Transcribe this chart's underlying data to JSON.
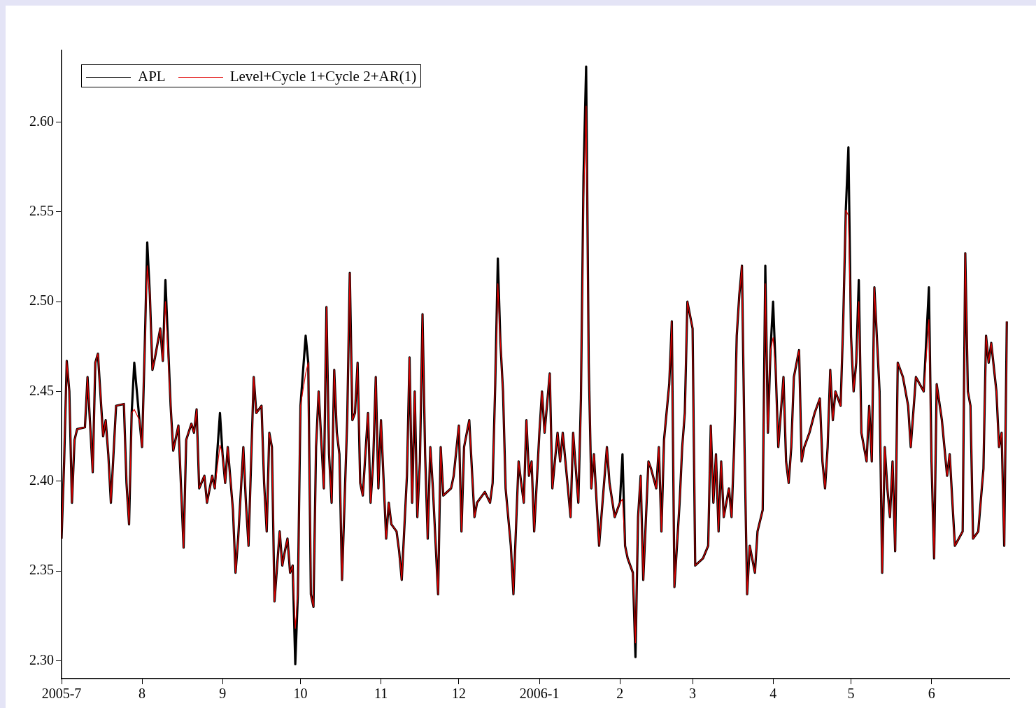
{
  "chart_data": {
    "type": "line",
    "x": [
      "2005-07-01",
      "2005-07-02",
      "2005-07-03",
      "2005-07-04",
      "2005-07-05",
      "2005-07-06",
      "2005-07-07",
      "2005-07-10",
      "2005-07-11",
      "2005-07-13",
      "2005-07-14",
      "2005-07-15",
      "2005-07-17",
      "2005-07-18",
      "2005-07-19",
      "2005-07-20",
      "2005-07-22",
      "2005-07-25",
      "2005-07-26",
      "2005-07-27",
      "2005-07-28",
      "2005-07-29",
      "2005-07-31",
      "2005-08-01",
      "2005-08-02",
      "2005-08-03",
      "2005-08-04",
      "2005-08-05",
      "2005-08-06",
      "2005-08-08",
      "2005-08-09",
      "2005-08-10",
      "2005-08-12",
      "2005-08-13",
      "2005-08-15",
      "2005-08-17",
      "2005-08-18",
      "2005-08-20",
      "2005-08-21",
      "2005-08-22",
      "2005-08-23",
      "2005-08-25",
      "2005-08-26",
      "2005-08-28",
      "2005-08-29",
      "2005-08-31",
      "2005-09-01",
      "2005-09-02",
      "2005-09-03",
      "2005-09-05",
      "2005-09-06",
      "2005-09-07",
      "2005-09-09",
      "2005-09-10",
      "2005-09-11",
      "2005-09-13",
      "2005-09-14",
      "2005-09-16",
      "2005-09-17",
      "2005-09-18",
      "2005-09-19",
      "2005-09-20",
      "2005-09-21",
      "2005-09-23",
      "2005-09-24",
      "2005-09-25",
      "2005-09-26",
      "2005-09-27",
      "2005-09-28",
      "2005-09-29",
      "2005-09-30",
      "2005-10-01",
      "2005-10-03",
      "2005-10-04",
      "2005-10-05",
      "2005-10-06",
      "2005-10-07",
      "2005-10-08",
      "2005-10-10",
      "2005-10-11",
      "2005-10-12",
      "2005-10-13",
      "2005-10-14",
      "2005-10-15",
      "2005-10-16",
      "2005-10-17",
      "2005-10-19",
      "2005-10-20",
      "2005-10-21",
      "2005-10-22",
      "2005-10-23",
      "2005-10-24",
      "2005-10-25",
      "2005-10-27",
      "2005-10-28",
      "2005-10-29",
      "2005-10-30",
      "2005-10-31",
      "2005-11-01",
      "2005-11-03",
      "2005-11-04",
      "2005-11-05",
      "2005-11-07",
      "2005-11-08",
      "2005-11-09",
      "2005-11-11",
      "2005-11-12",
      "2005-11-13",
      "2005-11-14",
      "2005-11-15",
      "2005-11-16",
      "2005-11-17",
      "2005-11-18",
      "2005-11-19",
      "2005-11-20",
      "2005-11-21",
      "2005-11-23",
      "2005-11-24",
      "2005-11-25",
      "2005-11-28",
      "2005-11-29",
      "2005-12-01",
      "2005-12-02",
      "2005-12-03",
      "2005-12-05",
      "2005-12-07",
      "2005-12-08",
      "2005-12-11",
      "2005-12-13",
      "2005-12-14",
      "2005-12-15",
      "2005-12-16",
      "2005-12-17",
      "2005-12-18",
      "2005-12-19",
      "2005-12-21",
      "2005-12-22",
      "2005-12-24",
      "2005-12-25",
      "2005-12-26",
      "2005-12-27",
      "2005-12-28",
      "2005-12-29",
      "2005-12-30",
      "2006-01-01",
      "2006-01-02",
      "2006-01-03",
      "2006-01-05",
      "2006-01-06",
      "2006-01-08",
      "2006-01-09",
      "2006-01-10",
      "2006-01-12",
      "2006-01-13",
      "2006-01-14",
      "2006-01-16",
      "2006-01-17",
      "2006-01-18",
      "2006-01-19",
      "2006-01-20",
      "2006-01-21",
      "2006-01-22",
      "2006-01-24",
      "2006-01-27",
      "2006-01-28",
      "2006-01-30",
      "2006-02-01",
      "2006-02-02",
      "2006-02-03",
      "2006-02-04",
      "2006-02-06",
      "2006-02-07",
      "2006-02-08",
      "2006-02-09",
      "2006-02-10",
      "2006-02-12",
      "2006-02-13",
      "2006-02-15",
      "2006-02-16",
      "2006-02-17",
      "2006-02-18",
      "2006-02-20",
      "2006-02-21",
      "2006-02-22",
      "2006-02-24",
      "2006-02-25",
      "2006-02-26",
      "2006-02-27",
      "2006-03-01",
      "2006-03-02",
      "2006-03-05",
      "2006-03-07",
      "2006-03-08",
      "2006-03-09",
      "2006-03-10",
      "2006-03-11",
      "2006-03-12",
      "2006-03-13",
      "2006-03-15",
      "2006-03-16",
      "2006-03-17",
      "2006-03-18",
      "2006-03-19",
      "2006-03-20",
      "2006-03-21",
      "2006-03-22",
      "2006-03-23",
      "2006-03-25",
      "2006-03-26",
      "2006-03-28",
      "2006-03-29",
      "2006-03-30",
      "2006-03-31",
      "2006-04-01",
      "2006-04-02",
      "2006-04-03",
      "2006-04-05",
      "2006-04-06",
      "2006-04-07",
      "2006-04-08",
      "2006-04-09",
      "2006-04-11",
      "2006-04-12",
      "2006-04-13",
      "2006-04-15",
      "2006-04-17",
      "2006-04-19",
      "2006-04-20",
      "2006-04-21",
      "2006-04-22",
      "2006-04-23",
      "2006-04-24",
      "2006-04-25",
      "2006-04-27",
      "2006-04-28",
      "2006-04-29",
      "2006-04-30",
      "2006-05-01",
      "2006-05-02",
      "2006-05-03",
      "2006-05-04",
      "2006-05-05",
      "2006-05-07",
      "2006-05-08",
      "2006-05-09",
      "2006-05-10",
      "2006-05-12",
      "2006-05-13",
      "2006-05-14",
      "2006-05-15",
      "2006-05-16",
      "2006-05-17",
      "2006-05-18",
      "2006-05-19",
      "2006-05-21",
      "2006-05-23",
      "2006-05-24",
      "2006-05-26",
      "2006-05-29",
      "2006-05-31",
      "2006-06-01",
      "2006-06-02",
      "2006-06-03",
      "2006-06-05",
      "2006-06-07",
      "2006-06-08",
      "2006-06-10",
      "2006-06-13",
      "2006-06-14",
      "2006-06-15",
      "2006-06-16",
      "2006-06-17",
      "2006-06-19",
      "2006-06-21",
      "2006-06-22",
      "2006-06-23",
      "2006-06-24",
      "2006-06-26",
      "2006-06-27",
      "2006-06-28",
      "2006-06-29",
      "2006-06-30"
    ],
    "series": [
      {
        "name": "APL",
        "color": "#000000",
        "values": [
          2.368,
          2.411,
          2.467,
          2.45,
          2.388,
          2.423,
          2.429,
          2.43,
          2.458,
          2.405,
          2.466,
          2.471,
          2.425,
          2.434,
          2.415,
          2.388,
          2.442,
          2.443,
          2.399,
          2.376,
          2.438,
          2.466,
          2.434,
          2.419,
          2.473,
          2.533,
          2.504,
          2.462,
          2.469,
          2.485,
          2.467,
          2.512,
          2.442,
          2.417,
          2.431,
          2.363,
          2.423,
          2.432,
          2.427,
          2.44,
          2.396,
          2.403,
          2.388,
          2.403,
          2.396,
          2.438,
          2.415,
          2.399,
          2.419,
          2.384,
          2.349,
          2.368,
          2.419,
          2.388,
          2.364,
          2.458,
          2.438,
          2.442,
          2.399,
          2.372,
          2.427,
          2.419,
          2.333,
          2.372,
          2.353,
          2.361,
          2.368,
          2.349,
          2.353,
          2.298,
          2.337,
          2.442,
          2.481,
          2.466,
          2.337,
          2.33,
          2.419,
          2.45,
          2.396,
          2.497,
          2.415,
          2.388,
          2.462,
          2.427,
          2.415,
          2.345,
          2.434,
          2.516,
          2.434,
          2.438,
          2.466,
          2.399,
          2.392,
          2.438,
          2.388,
          2.411,
          2.458,
          2.396,
          2.434,
          2.368,
          2.388,
          2.376,
          2.372,
          2.361,
          2.345,
          2.403,
          2.469,
          2.388,
          2.45,
          2.38,
          2.411,
          2.493,
          2.415,
          2.368,
          2.419,
          2.396,
          2.337,
          2.419,
          2.392,
          2.396,
          2.403,
          2.431,
          2.372,
          2.419,
          2.434,
          2.38,
          2.388,
          2.394,
          2.388,
          2.399,
          2.454,
          2.524,
          2.477,
          2.45,
          2.396,
          2.364,
          2.337,
          2.411,
          2.399,
          2.388,
          2.434,
          2.403,
          2.411,
          2.372,
          2.427,
          2.45,
          2.427,
          2.46,
          2.396,
          2.427,
          2.411,
          2.427,
          2.396,
          2.38,
          2.427,
          2.388,
          2.446,
          2.57,
          2.631,
          2.466,
          2.396,
          2.415,
          2.364,
          2.419,
          2.399,
          2.38,
          2.388,
          2.415,
          2.364,
          2.357,
          2.349,
          2.302,
          2.38,
          2.403,
          2.345,
          2.411,
          2.407,
          2.396,
          2.419,
          2.372,
          2.423,
          2.454,
          2.489,
          2.341,
          2.388,
          2.419,
          2.438,
          2.5,
          2.485,
          2.353,
          2.357,
          2.364,
          2.431,
          2.388,
          2.415,
          2.372,
          2.411,
          2.38,
          2.396,
          2.38,
          2.419,
          2.481,
          2.504,
          2.52,
          2.419,
          2.337,
          2.364,
          2.349,
          2.372,
          2.384,
          2.52,
          2.427,
          2.473,
          2.5,
          2.462,
          2.419,
          2.458,
          2.411,
          2.399,
          2.419,
          2.458,
          2.473,
          2.411,
          2.419,
          2.427,
          2.438,
          2.446,
          2.411,
          2.396,
          2.419,
          2.462,
          2.434,
          2.45,
          2.442,
          2.489,
          2.551,
          2.586,
          2.481,
          2.45,
          2.466,
          2.512,
          2.427,
          2.411,
          2.442,
          2.411,
          2.508,
          2.45,
          2.349,
          2.419,
          2.396,
          2.38,
          2.411,
          2.361,
          2.466,
          2.458,
          2.442,
          2.419,
          2.458,
          2.45,
          2.508,
          2.411,
          2.357,
          2.454,
          2.434,
          2.403,
          2.415,
          2.364,
          2.372,
          2.527,
          2.45,
          2.442,
          2.368,
          2.372,
          2.407,
          2.481,
          2.466,
          2.477,
          2.45,
          2.419,
          2.427,
          2.364,
          2.489
        ]
      },
      {
        "name": "Level+Cycle 1+Cycle 2+AR(1)",
        "color": "#e00000",
        "values": [
          2.368,
          2.411,
          2.467,
          2.45,
          2.388,
          2.423,
          2.429,
          2.43,
          2.458,
          2.405,
          2.466,
          2.471,
          2.425,
          2.434,
          2.415,
          2.388,
          2.442,
          2.443,
          2.399,
          2.376,
          2.438,
          2.44,
          2.434,
          2.419,
          2.473,
          2.52,
          2.504,
          2.462,
          2.469,
          2.485,
          2.467,
          2.5,
          2.442,
          2.417,
          2.431,
          2.363,
          2.423,
          2.432,
          2.427,
          2.44,
          2.396,
          2.403,
          2.388,
          2.403,
          2.396,
          2.42,
          2.415,
          2.399,
          2.419,
          2.384,
          2.349,
          2.368,
          2.419,
          2.388,
          2.364,
          2.458,
          2.438,
          2.442,
          2.399,
          2.372,
          2.427,
          2.419,
          2.333,
          2.372,
          2.353,
          2.361,
          2.368,
          2.349,
          2.353,
          2.318,
          2.337,
          2.442,
          2.46,
          2.466,
          2.337,
          2.33,
          2.419,
          2.45,
          2.396,
          2.497,
          2.415,
          2.388,
          2.462,
          2.427,
          2.415,
          2.345,
          2.434,
          2.516,
          2.434,
          2.438,
          2.466,
          2.399,
          2.392,
          2.438,
          2.388,
          2.411,
          2.458,
          2.396,
          2.434,
          2.368,
          2.388,
          2.376,
          2.372,
          2.361,
          2.345,
          2.403,
          2.469,
          2.388,
          2.45,
          2.38,
          2.411,
          2.493,
          2.415,
          2.368,
          2.419,
          2.396,
          2.337,
          2.419,
          2.392,
          2.396,
          2.403,
          2.431,
          2.372,
          2.419,
          2.434,
          2.38,
          2.388,
          2.394,
          2.388,
          2.399,
          2.454,
          2.51,
          2.477,
          2.45,
          2.396,
          2.364,
          2.337,
          2.411,
          2.399,
          2.388,
          2.434,
          2.403,
          2.411,
          2.372,
          2.427,
          2.45,
          2.427,
          2.46,
          2.396,
          2.427,
          2.411,
          2.427,
          2.396,
          2.38,
          2.427,
          2.388,
          2.446,
          2.555,
          2.609,
          2.466,
          2.396,
          2.415,
          2.364,
          2.419,
          2.399,
          2.38,
          2.388,
          2.39,
          2.364,
          2.357,
          2.349,
          2.31,
          2.38,
          2.403,
          2.345,
          2.411,
          2.407,
          2.396,
          2.419,
          2.372,
          2.423,
          2.454,
          2.489,
          2.341,
          2.388,
          2.419,
          2.438,
          2.5,
          2.485,
          2.353,
          2.357,
          2.364,
          2.431,
          2.388,
          2.415,
          2.372,
          2.411,
          2.38,
          2.396,
          2.38,
          2.419,
          2.481,
          2.504,
          2.52,
          2.419,
          2.337,
          2.364,
          2.349,
          2.372,
          2.384,
          2.51,
          2.427,
          2.473,
          2.48,
          2.462,
          2.419,
          2.458,
          2.411,
          2.399,
          2.419,
          2.458,
          2.473,
          2.411,
          2.419,
          2.427,
          2.438,
          2.446,
          2.411,
          2.396,
          2.419,
          2.462,
          2.434,
          2.45,
          2.442,
          2.489,
          2.551,
          2.548,
          2.481,
          2.45,
          2.466,
          2.5,
          2.427,
          2.411,
          2.442,
          2.411,
          2.508,
          2.45,
          2.349,
          2.419,
          2.396,
          2.38,
          2.411,
          2.361,
          2.466,
          2.458,
          2.442,
          2.419,
          2.458,
          2.45,
          2.49,
          2.411,
          2.357,
          2.454,
          2.434,
          2.403,
          2.415,
          2.364,
          2.372,
          2.527,
          2.45,
          2.442,
          2.368,
          2.372,
          2.407,
          2.481,
          2.466,
          2.477,
          2.45,
          2.419,
          2.427,
          2.364,
          2.489
        ]
      }
    ],
    "xlim": [
      "2005-07-01",
      "2006-07-01"
    ],
    "xticks": [
      {
        "value": "2005-07-01",
        "label": "2005-7"
      },
      {
        "value": "2005-08-01",
        "label": "8"
      },
      {
        "value": "2005-09-01",
        "label": "9"
      },
      {
        "value": "2005-10-01",
        "label": "10"
      },
      {
        "value": "2005-11-01",
        "label": "11"
      },
      {
        "value": "2005-12-01",
        "label": "12"
      },
      {
        "value": "2006-01-01",
        "label": "2006-1"
      },
      {
        "value": "2006-02-01",
        "label": "2"
      },
      {
        "value": "2006-03-01",
        "label": "3"
      },
      {
        "value": "2006-04-01",
        "label": "4"
      },
      {
        "value": "2006-05-01",
        "label": "5"
      },
      {
        "value": "2006-06-01",
        "label": "6"
      }
    ],
    "ylim": [
      2.29,
      2.64
    ],
    "yticks": [
      {
        "value": 2.3,
        "label": "2.30"
      },
      {
        "value": 2.35,
        "label": "2.35"
      },
      {
        "value": 2.4,
        "label": "2.40"
      },
      {
        "value": 2.45,
        "label": "2.45"
      },
      {
        "value": 2.5,
        "label": "2.50"
      },
      {
        "value": 2.55,
        "label": "2.55"
      },
      {
        "value": 2.6,
        "label": "2.60"
      }
    ],
    "legend": "top left"
  }
}
